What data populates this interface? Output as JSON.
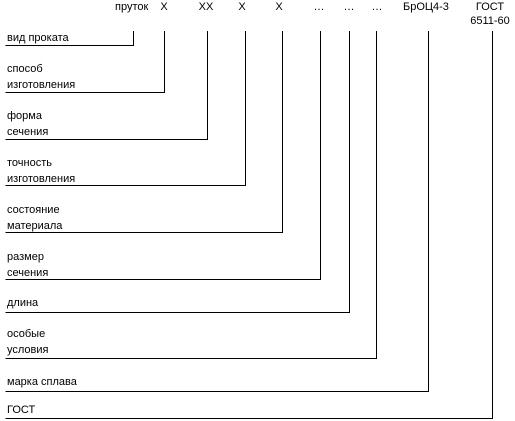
{
  "designation": {
    "product": "пруток",
    "fields": [
      "Х",
      "ХХ",
      "Х",
      "Х",
      "…",
      "…",
      "…"
    ],
    "alloy": "БрОЦ4-3",
    "standard": [
      "ГОСТ",
      "6511-60"
    ]
  },
  "legend": [
    [
      "вид проката"
    ],
    [
      "способ",
      "изготовления"
    ],
    [
      "форма",
      "сечения"
    ],
    [
      "точность",
      "изготовления"
    ],
    [
      "состояние",
      "материала"
    ],
    [
      "размер",
      "сечения"
    ],
    [
      "длина"
    ],
    [
      "особые",
      "условия"
    ],
    [
      "марка сплава"
    ],
    [
      "ГОСТ"
    ]
  ],
  "colors": {
    "line": "#000000",
    "text": "#000000",
    "background": "#ffffff"
  }
}
